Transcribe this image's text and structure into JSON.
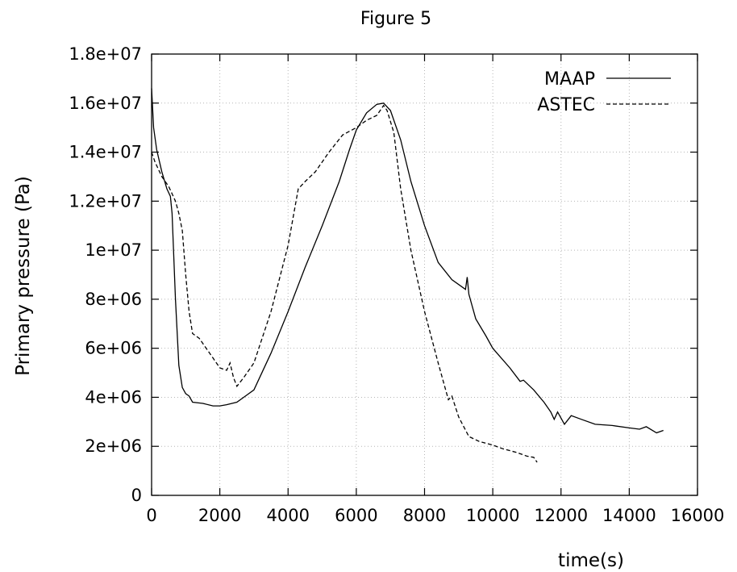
{
  "chart_data": {
    "type": "line",
    "title": "Figure 5",
    "xlabel": "time(s)",
    "ylabel": "Primary pressure (Pa)",
    "xlim": [
      0,
      16000
    ],
    "ylim": [
      0,
      18000000
    ],
    "x_ticks": [
      {
        "value": 0,
        "label": "0"
      },
      {
        "value": 2000,
        "label": "2000"
      },
      {
        "value": 4000,
        "label": "4000"
      },
      {
        "value": 6000,
        "label": "6000"
      },
      {
        "value": 8000,
        "label": "8000"
      },
      {
        "value": 10000,
        "label": "10000"
      },
      {
        "value": 12000,
        "label": "12000"
      },
      {
        "value": 14000,
        "label": "14000"
      },
      {
        "value": 16000,
        "label": "16000"
      }
    ],
    "y_ticks": [
      {
        "value": 0,
        "label": "0"
      },
      {
        "value": 2000000,
        "label": "2e+06"
      },
      {
        "value": 4000000,
        "label": "4e+06"
      },
      {
        "value": 6000000,
        "label": "6e+06"
      },
      {
        "value": 8000000,
        "label": "8e+06"
      },
      {
        "value": 10000000,
        "label": "1e+07"
      },
      {
        "value": 12000000,
        "label": "1.2e+07"
      },
      {
        "value": 14000000,
        "label": "1.4e+07"
      },
      {
        "value": 16000000,
        "label": "1.6e+07"
      },
      {
        "value": 18000000,
        "label": "1.8e+07"
      }
    ],
    "grid": true,
    "legend_position": "top-right",
    "series": [
      {
        "name": "MAAP",
        "style": "solid",
        "color": "#000000",
        "points": [
          [
            0,
            16600000
          ],
          [
            60,
            15000000
          ],
          [
            150,
            14100000
          ],
          [
            300,
            13200000
          ],
          [
            450,
            12500000
          ],
          [
            550,
            12200000
          ],
          [
            600,
            11500000
          ],
          [
            700,
            8000000
          ],
          [
            800,
            5300000
          ],
          [
            900,
            4400000
          ],
          [
            1000,
            4150000
          ],
          [
            1100,
            4050000
          ],
          [
            1200,
            3800000
          ],
          [
            1500,
            3750000
          ],
          [
            1800,
            3650000
          ],
          [
            2000,
            3650000
          ],
          [
            2200,
            3700000
          ],
          [
            2500,
            3800000
          ],
          [
            2800,
            4100000
          ],
          [
            3000,
            4300000
          ],
          [
            3500,
            5800000
          ],
          [
            4000,
            7500000
          ],
          [
            4500,
            9300000
          ],
          [
            5000,
            11000000
          ],
          [
            5500,
            12800000
          ],
          [
            5800,
            14100000
          ],
          [
            6000,
            14900000
          ],
          [
            6300,
            15600000
          ],
          [
            6600,
            15950000
          ],
          [
            6800,
            16000000
          ],
          [
            7000,
            15700000
          ],
          [
            7300,
            14500000
          ],
          [
            7600,
            12800000
          ],
          [
            8000,
            11000000
          ],
          [
            8400,
            9500000
          ],
          [
            8800,
            8800000
          ],
          [
            9200,
            8400000
          ],
          [
            9250,
            8900000
          ],
          [
            9300,
            8200000
          ],
          [
            9500,
            7200000
          ],
          [
            9800,
            6500000
          ],
          [
            10000,
            6000000
          ],
          [
            10500,
            5200000
          ],
          [
            10800,
            4650000
          ],
          [
            10900,
            4700000
          ],
          [
            11200,
            4300000
          ],
          [
            11500,
            3800000
          ],
          [
            11700,
            3400000
          ],
          [
            11800,
            3100000
          ],
          [
            11900,
            3400000
          ],
          [
            12000,
            3150000
          ],
          [
            12100,
            2900000
          ],
          [
            12300,
            3250000
          ],
          [
            12600,
            3100000
          ],
          [
            13000,
            2900000
          ],
          [
            13500,
            2850000
          ],
          [
            14000,
            2750000
          ],
          [
            14300,
            2700000
          ],
          [
            14500,
            2800000
          ],
          [
            14800,
            2550000
          ],
          [
            15000,
            2650000
          ]
        ]
      },
      {
        "name": "ASTEC",
        "style": "dashed",
        "color": "#000000",
        "points": [
          [
            0,
            14000000
          ],
          [
            100,
            13600000
          ],
          [
            300,
            13000000
          ],
          [
            500,
            12600000
          ],
          [
            700,
            12000000
          ],
          [
            800,
            11500000
          ],
          [
            900,
            10800000
          ],
          [
            1000,
            9000000
          ],
          [
            1100,
            7500000
          ],
          [
            1200,
            6600000
          ],
          [
            1400,
            6400000
          ],
          [
            1600,
            6000000
          ],
          [
            1800,
            5600000
          ],
          [
            2000,
            5200000
          ],
          [
            2200,
            5100000
          ],
          [
            2300,
            5400000
          ],
          [
            2400,
            4800000
          ],
          [
            2500,
            4450000
          ],
          [
            2700,
            4800000
          ],
          [
            3000,
            5400000
          ],
          [
            3500,
            7500000
          ],
          [
            4000,
            10200000
          ],
          [
            4300,
            12500000
          ],
          [
            4500,
            12800000
          ],
          [
            4800,
            13200000
          ],
          [
            5200,
            14000000
          ],
          [
            5600,
            14700000
          ],
          [
            6000,
            15000000
          ],
          [
            6300,
            15300000
          ],
          [
            6600,
            15500000
          ],
          [
            6800,
            15900000
          ],
          [
            6900,
            15700000
          ],
          [
            7100,
            14800000
          ],
          [
            7300,
            12500000
          ],
          [
            7600,
            10000000
          ],
          [
            8000,
            7500000
          ],
          [
            8400,
            5400000
          ],
          [
            8700,
            3900000
          ],
          [
            8800,
            4050000
          ],
          [
            9000,
            3200000
          ],
          [
            9300,
            2400000
          ],
          [
            9600,
            2200000
          ],
          [
            10000,
            2050000
          ],
          [
            10300,
            1900000
          ],
          [
            10700,
            1750000
          ],
          [
            11000,
            1600000
          ],
          [
            11200,
            1550000
          ],
          [
            11300,
            1350000
          ]
        ]
      }
    ]
  }
}
